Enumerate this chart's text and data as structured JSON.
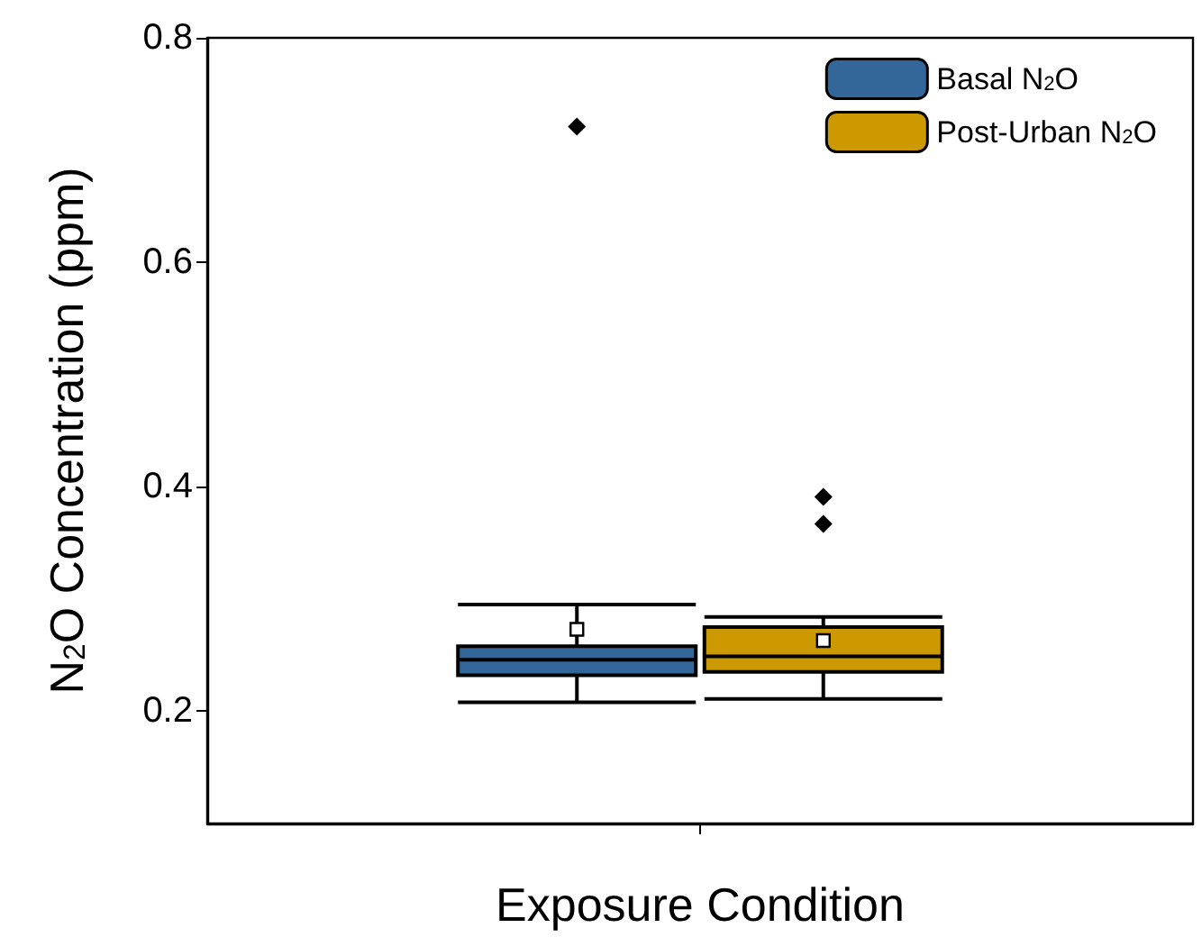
{
  "chart_data": {
    "type": "box",
    "xlabel": "Exposure Condition",
    "ylabel": "N$_{2}$O Concentration (ppm)",
    "categories": [
      null
    ],
    "ylim": [
      0.1,
      0.8
    ],
    "yticks": [
      0.2,
      0.4,
      0.6,
      0.8
    ],
    "grid": false,
    "legend": "top right",
    "series": [
      {
        "name": "Basal N$_{2}$O",
        "color": "#336699",
        "boxes": [
          {
            "low": 0.208,
            "q1": 0.232,
            "median": 0.246,
            "q3": 0.258,
            "high": 0.295,
            "mean": 0.273,
            "outliers": [
              0.721
            ]
          }
        ]
      },
      {
        "name": "Post-Urban N$_{2}$O",
        "color": "#cc9900",
        "boxes": [
          {
            "low": 0.211,
            "q1": 0.235,
            "median": 0.249,
            "q3": 0.275,
            "high": 0.284,
            "mean": 0.263,
            "outliers": [
              0.391,
              0.367
            ]
          }
        ]
      }
    ]
  }
}
